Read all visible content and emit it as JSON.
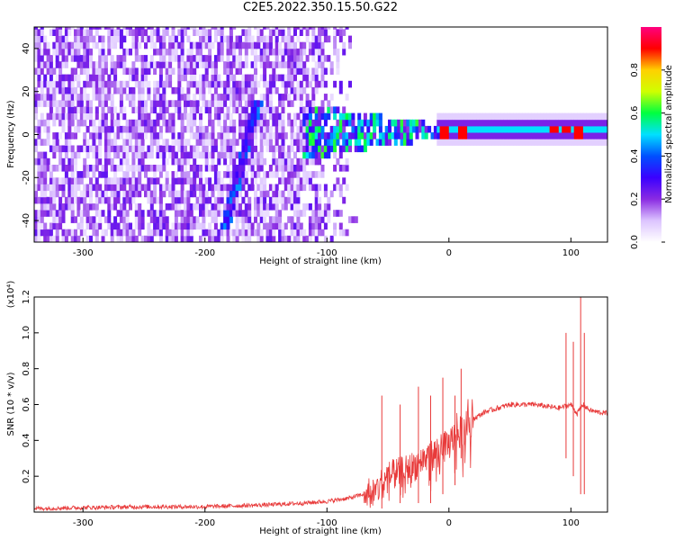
{
  "title": "C2E5.2022.350.15.50.G22",
  "chart_data": [
    {
      "type": "heatmap",
      "xlabel": "Height of straight line (km)",
      "ylabel": "Frequency (Hz)",
      "xlim": [
        -340,
        130
      ],
      "ylim": [
        -50,
        50
      ],
      "xticks": [
        -300,
        -200,
        -100,
        0,
        100
      ],
      "yticks": [
        -40,
        -20,
        0,
        20,
        40
      ],
      "colorbar": {
        "label": "Normalized spectral amplitude",
        "range": [
          0.0,
          1.0
        ],
        "ticks": [
          0.0,
          0.2,
          0.4,
          0.6,
          0.8
        ],
        "colormap": [
          "#ffffff",
          "#dcc4ff",
          "#8a2be2",
          "#3a00ff",
          "#0050ff",
          "#00e0ff",
          "#00ff40",
          "#d0ff00",
          "#ffd000",
          "#ff0000",
          "#ff007f"
        ]
      },
      "features": [
        {
          "x_range": [
            -340,
            -75
          ],
          "description": "broadband noise",
          "amplitude": 0.15
        },
        {
          "x": [
            -185,
            -160,
            -155
          ],
          "y": [
            -45,
            10,
            15
          ],
          "description": "diagonal streak",
          "amplitude": 0.25
        },
        {
          "x_range": [
            -120,
            -10
          ],
          "y_center": 0,
          "description": "signal onset with sidebands",
          "amplitude": 0.45
        },
        {
          "x_range": [
            0,
            130
          ],
          "y_center": 0,
          "description": "steady carrier",
          "amplitude": 0.5
        },
        {
          "x": [
            -5,
            10,
            85,
            95,
            105
          ],
          "y": [
            0,
            0,
            1,
            1,
            0
          ],
          "description": "peaks",
          "amplitude": 0.9
        }
      ]
    },
    {
      "type": "line",
      "xlabel": "Height of straight line (km)",
      "ylabel": "SNR (10 * v/v)",
      "yscale_label": "(x10⁴)",
      "xlim": [
        -340,
        130
      ],
      "ylim": [
        0,
        1.2
      ],
      "xticks": [
        -300,
        -200,
        -100,
        0,
        100
      ],
      "yticks": [
        0.2,
        0.4,
        0.6,
        0.8,
        1.0,
        1.2
      ],
      "color": "#e83a3a",
      "series": [
        {
          "x": [
            -340,
            -300,
            -250,
            -200,
            -150,
            -120,
            -100,
            -80,
            -60,
            -50,
            -40,
            -30,
            -20,
            -10,
            0,
            10,
            20,
            30,
            40,
            50,
            60,
            70,
            80,
            90,
            100,
            105,
            110,
            115,
            120,
            130
          ],
          "values": [
            0.02,
            0.025,
            0.03,
            0.03,
            0.04,
            0.05,
            0.06,
            0.08,
            0.12,
            0.2,
            0.22,
            0.25,
            0.3,
            0.33,
            0.38,
            0.45,
            0.52,
            0.56,
            0.58,
            0.6,
            0.6,
            0.6,
            0.59,
            0.58,
            0.6,
            0.55,
            0.6,
            0.57,
            0.56,
            0.55
          ]
        }
      ],
      "spikes": [
        {
          "x": -55,
          "values": [
            0.02,
            0.65
          ]
        },
        {
          "x": -40,
          "values": [
            0.05,
            0.6
          ]
        },
        {
          "x": -25,
          "values": [
            0.05,
            0.7
          ]
        },
        {
          "x": -15,
          "values": [
            0.05,
            0.65
          ]
        },
        {
          "x": -5,
          "values": [
            0.1,
            0.75
          ]
        },
        {
          "x": 5,
          "values": [
            0.15,
            0.65
          ]
        },
        {
          "x": 10,
          "values": [
            0.3,
            0.8
          ]
        },
        {
          "x": 96,
          "values": [
            0.3,
            1.0
          ]
        },
        {
          "x": 102,
          "values": [
            0.2,
            0.95
          ]
        },
        {
          "x": 108,
          "values": [
            0.1,
            1.2
          ]
        },
        {
          "x": 111,
          "values": [
            0.1,
            1.0
          ]
        }
      ]
    }
  ]
}
